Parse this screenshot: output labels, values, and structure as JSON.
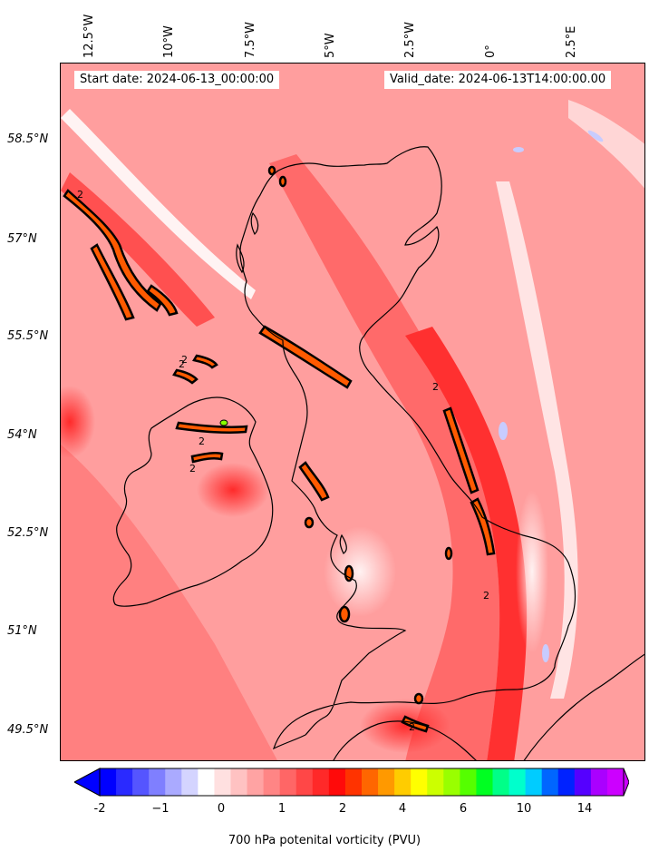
{
  "map": {
    "start_date": "Start date: 2024-06-13_00:00:00",
    "valid_date": "Valid_date: 2024-06-13T14:00:00.00",
    "lon_labels": [
      "12.5°W",
      "10°W",
      "7.5°W",
      "5°W",
      "2.5°W",
      "0°",
      "2.5°E"
    ],
    "lat_labels": [
      "58.5°N",
      "57°N",
      "55.5°N",
      "54°N",
      "52.5°N",
      "51°N",
      "49.5°N"
    ],
    "contour_label": "2",
    "coastline_color": "#000000"
  },
  "colorbar": {
    "label": "700 hPa potenital vorticity (PVU)",
    "ticks": [
      "-2",
      "−1",
      "0",
      "1",
      "2",
      "4",
      "6",
      "10",
      "14"
    ],
    "colors": [
      "#0000ff",
      "#2a2aff",
      "#5555ff",
      "#7f7fff",
      "#aaaaff",
      "#d4d4ff",
      "#ffffff",
      "#ffe0e0",
      "#ffc2c2",
      "#ffa3a3",
      "#ff8585",
      "#ff6666",
      "#ff4747",
      "#ff2929",
      "#ff0a0a",
      "#ff3300",
      "#ff6600",
      "#ff9900",
      "#ffcc00",
      "#ffff00",
      "#ccff00",
      "#99ff00",
      "#55ff00",
      "#00ff22",
      "#00ff88",
      "#00ffcc",
      "#00ccff",
      "#0066ff",
      "#0022ff",
      "#5500ff",
      "#aa00ff",
      "#cc00ff"
    ]
  }
}
